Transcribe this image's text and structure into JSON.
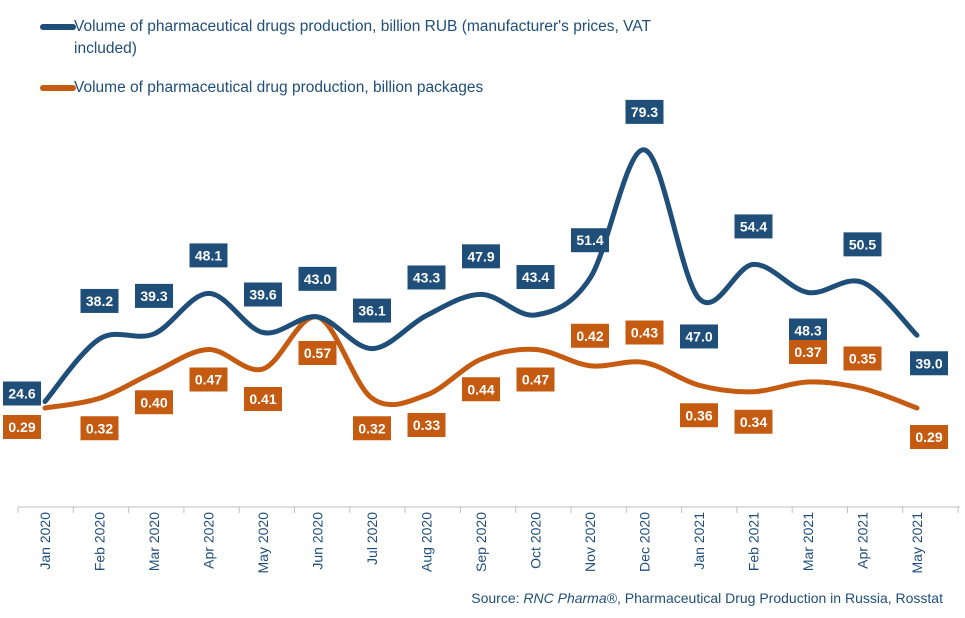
{
  "chart_data": {
    "type": "line",
    "categories": [
      "Jan 2020",
      "Feb 2020",
      "Mar 2020",
      "Apr 2020",
      "May 2020",
      "Jun 2020",
      "Jul 2020",
      "Aug 2020",
      "Sep 2020",
      "Oct 2020",
      "Nov 2020",
      "Dec 2020",
      "Jan 2021",
      "Feb 2021",
      "Mar 2021",
      "Apr 2021",
      "May 2021"
    ],
    "series": [
      {
        "name": "Volume of pharmaceutical drugs production, billion RUB (manufacturer's prices, VAT included)",
        "color": "#1f4e79",
        "values": [
          24.6,
          38.2,
          39.3,
          48.1,
          39.6,
          43.0,
          36.1,
          43.3,
          47.9,
          43.4,
          51.4,
          79.3,
          47.0,
          54.4,
          48.3,
          50.5,
          39.0
        ],
        "labels": [
          "24.6",
          "38.2",
          "39.3",
          "48.1",
          "39.6",
          "43.0",
          "36.1",
          "43.3",
          "47.9",
          "43.4",
          "51.4",
          "79.3",
          "47.0",
          "54.4",
          "48.3",
          "50.5",
          "39.0"
        ]
      },
      {
        "name": "Volume of pharmaceutical drug production, billion packages",
        "color": "#c55a11",
        "values": [
          0.29,
          0.32,
          0.4,
          0.47,
          0.41,
          0.57,
          0.32,
          0.33,
          0.44,
          0.47,
          0.42,
          0.43,
          0.36,
          0.34,
          0.37,
          0.35,
          0.29
        ],
        "labels": [
          "0.29",
          "0.32",
          "0.40",
          "0.47",
          "0.41",
          "0.57",
          "0.32",
          "0.33",
          "0.44",
          "0.47",
          "0.42",
          "0.43",
          "0.36",
          "0.34",
          "0.37",
          "0.35",
          "0.29"
        ]
      }
    ],
    "legend_position": "top-left",
    "grid": false,
    "source_prefix": "Source: ",
    "source_italic": "RNC Pharma®",
    "source_suffix": ", Pharmaceutical Drug Production in Russia, Rosstat"
  }
}
